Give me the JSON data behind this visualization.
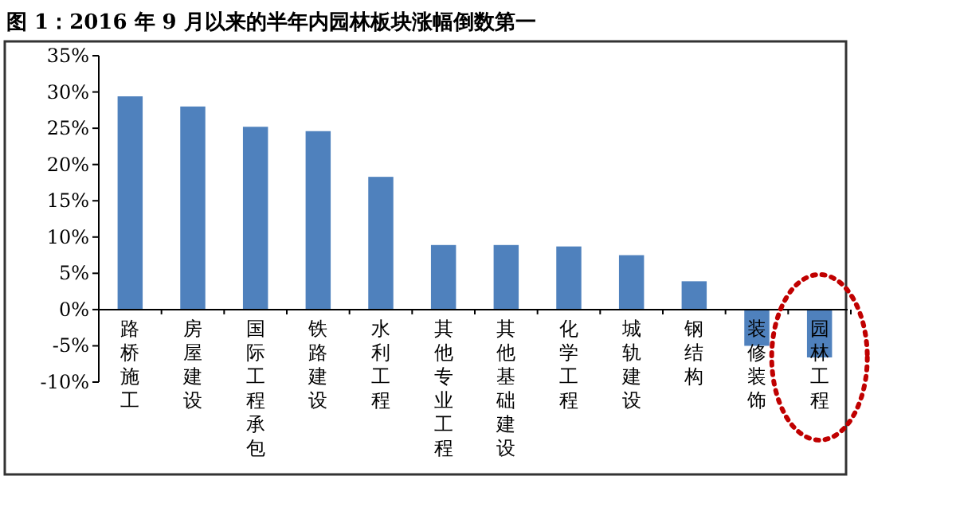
{
  "chart_data": {
    "type": "bar",
    "title": "图 1：2016 年 9 月以来的半年内园林板块涨幅倒数第一",
    "categories": [
      "路桥施工",
      "房屋建设",
      "国际工程承包",
      "铁路建设",
      "水利工程",
      "其他专业工程",
      "其他基础建设",
      "化学工程",
      "城轨建设",
      "钢结构",
      "装修装饰",
      "园林工程"
    ],
    "values": [
      29.4,
      28.0,
      25.2,
      24.6,
      18.3,
      8.9,
      8.9,
      8.7,
      7.5,
      3.9,
      -5.0,
      -6.6
    ],
    "color": "#4f81bd",
    "ylim": [
      -10,
      35
    ],
    "yticks": [
      {
        "value": -10,
        "label": "-10%"
      },
      {
        "value": -5,
        "label": "-5%"
      },
      {
        "value": 0,
        "label": "0%"
      },
      {
        "value": 5,
        "label": "5%"
      },
      {
        "value": 10,
        "label": "10%"
      },
      {
        "value": 15,
        "label": "15%"
      },
      {
        "value": 20,
        "label": "20%"
      },
      {
        "value": 25,
        "label": "25%"
      },
      {
        "value": 30,
        "label": "30%"
      },
      {
        "value": 35,
        "label": "35%"
      }
    ],
    "grid": false
  }
}
